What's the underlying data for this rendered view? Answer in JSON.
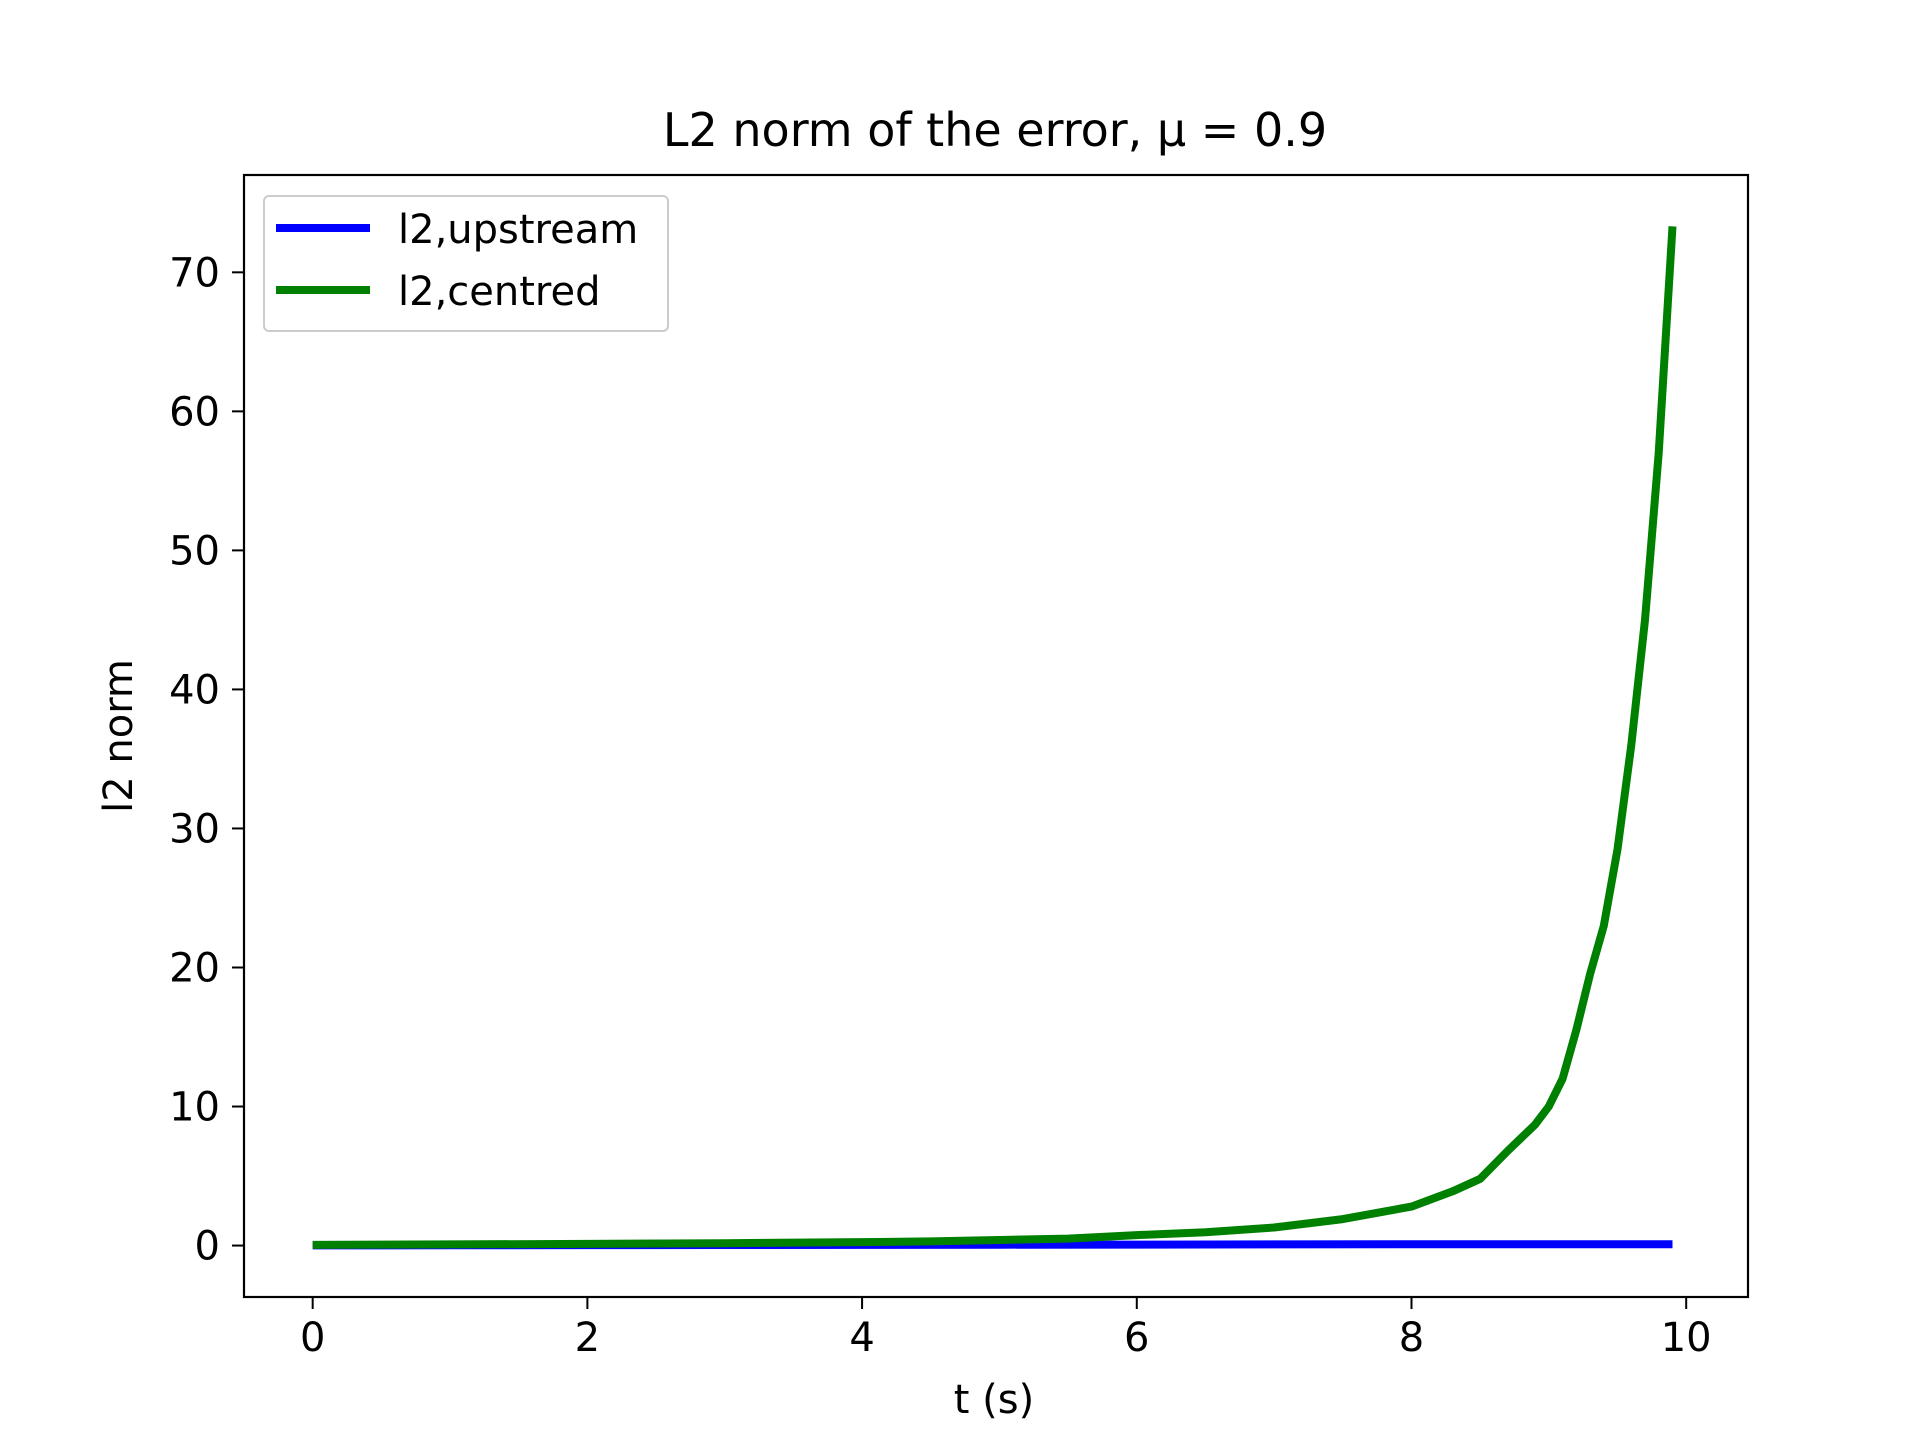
{
  "chart_data": {
    "type": "line",
    "title": "L2 norm of the error, μ = 0.9",
    "xlabel": "t (s)",
    "ylabel": "l2 norm",
    "xlim": [
      -0.5,
      10.45
    ],
    "ylim": [
      -3.7,
      77.0
    ],
    "xticks": [
      0,
      2,
      4,
      6,
      8,
      10
    ],
    "yticks": [
      0,
      10,
      20,
      30,
      40,
      50,
      60,
      70
    ],
    "grid": false,
    "legend_position": "upper-left",
    "series": [
      {
        "name": "l2,upstream",
        "color": "#0000ff",
        "x": [
          0,
          1,
          2,
          3,
          4,
          5,
          6,
          7,
          8,
          9,
          9.9
        ],
        "y": [
          0.01,
          0.02,
          0.03,
          0.04,
          0.05,
          0.06,
          0.07,
          0.08,
          0.09,
          0.1,
          0.1
        ]
      },
      {
        "name": "l2,centred",
        "color": "#008000",
        "x": [
          0,
          1,
          2,
          3,
          4,
          4.5,
          5,
          5.5,
          6,
          6.5,
          7,
          7.5,
          8,
          8.3,
          8.5,
          8.7,
          8.9,
          9.0,
          9.1,
          9.2,
          9.3,
          9.4,
          9.5,
          9.6,
          9.7,
          9.8,
          9.9
        ],
        "y": [
          0.05,
          0.08,
          0.12,
          0.17,
          0.25,
          0.3,
          0.4,
          0.5,
          0.75,
          0.95,
          1.3,
          1.9,
          2.8,
          3.9,
          4.8,
          6.8,
          8.7,
          10.0,
          12.0,
          15.5,
          19.5,
          23.0,
          28.5,
          36.0,
          45.0,
          57.0,
          73.3
        ]
      }
    ]
  }
}
